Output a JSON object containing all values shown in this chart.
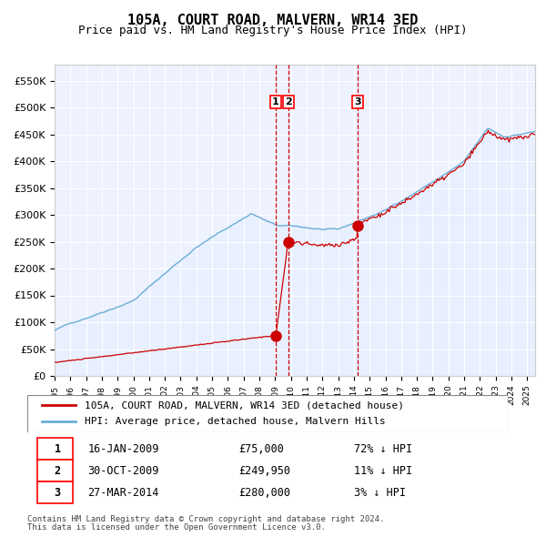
{
  "title": "105A, COURT ROAD, MALVERN, WR14 3ED",
  "subtitle": "Price paid vs. HM Land Registry's House Price Index (HPI)",
  "legend_line1": "105A, COURT ROAD, MALVERN, WR14 3ED (detached house)",
  "legend_line2": "HPI: Average price, detached house, Malvern Hills",
  "footnote1": "Contains HM Land Registry data © Crown copyright and database right 2024.",
  "footnote2": "This data is licensed under the Open Government Licence v3.0.",
  "transactions": [
    {
      "num": 1,
      "date": "16-JAN-2009",
      "price": 75000,
      "pct": "72%",
      "dir": "↓",
      "date_val": 2009.04
    },
    {
      "num": 2,
      "date": "30-OCT-2009",
      "price": 249950,
      "pct": "11%",
      "dir": "↓",
      "date_val": 2009.83
    },
    {
      "num": 3,
      "date": "27-MAR-2014",
      "price": 280000,
      "pct": "3%",
      "dir": "↓",
      "date_val": 2014.24
    }
  ],
  "hpi_color": "#6baed6",
  "hpi_fill_color": "#ddeeff",
  "price_color": "#cc0000",
  "vline_color": "#cc0000",
  "background_color": "#f0f4ff",
  "plot_bg_color": "#eef2ff",
  "ylim": [
    0,
    580000
  ],
  "xlim_start": 1995.0,
  "xlim_end": 2025.5,
  "yticks": [
    0,
    50000,
    100000,
    150000,
    200000,
    250000,
    300000,
    350000,
    400000,
    450000,
    500000,
    550000
  ],
  "ytick_labels": [
    "£0",
    "£50K",
    "£100K",
    "£150K",
    "£200K",
    "£250K",
    "£300K",
    "£350K",
    "£400K",
    "£450K",
    "£500K",
    "£550K"
  ],
  "xticks": [
    1995,
    1996,
    1997,
    1998,
    1999,
    2000,
    2001,
    2002,
    2003,
    2004,
    2005,
    2006,
    2007,
    2008,
    2009,
    2010,
    2011,
    2012,
    2013,
    2014,
    2015,
    2016,
    2017,
    2018,
    2019,
    2020,
    2021,
    2022,
    2023,
    2024,
    2025
  ]
}
